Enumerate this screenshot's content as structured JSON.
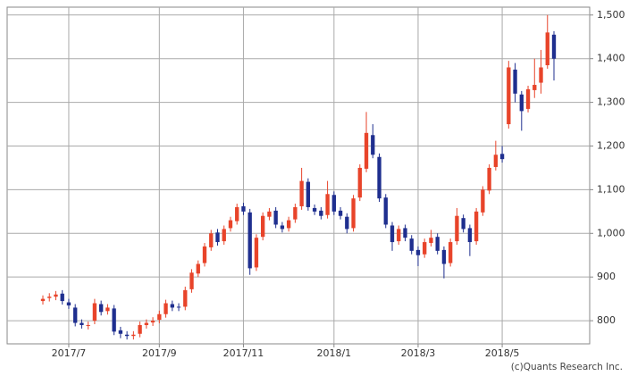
{
  "chart_data": {
    "type": "candlestick",
    "credit": "(c)Quants Research Inc.",
    "up_color": "#e8442a",
    "down_color": "#1f2f8f",
    "grid": true,
    "ylim": [
      747,
      1518
    ],
    "yticks": [
      800,
      900,
      {
        "value": 1000,
        "label": "1,000"
      },
      {
        "value": 1100,
        "label": "1,100"
      },
      {
        "value": 1200,
        "label": "1,200"
      },
      {
        "value": 1300,
        "label": "1,300"
      },
      {
        "value": 1400,
        "label": "1,400"
      },
      {
        "value": 1500,
        "label": "1,500"
      }
    ],
    "categories": [
      null,
      null,
      null,
      null,
      "2017/7",
      null,
      null,
      null,
      null,
      null,
      null,
      null,
      null,
      null,
      null,
      null,
      null,
      null,
      "2017/9",
      null,
      null,
      null,
      null,
      null,
      null,
      null,
      null,
      null,
      null,
      null,
      null,
      "2017/11",
      null,
      null,
      null,
      null,
      null,
      null,
      null,
      null,
      null,
      null,
      null,
      null,
      null,
      "2018/1",
      null,
      null,
      null,
      null,
      null,
      null,
      null,
      null,
      null,
      null,
      null,
      null,
      "2018/3",
      null,
      null,
      null,
      null,
      null,
      null,
      null,
      null,
      null,
      null,
      null,
      null,
      "2018/5",
      null,
      null,
      null,
      null,
      null,
      null,
      null,
      null
    ],
    "open": [
      845,
      852,
      855,
      862,
      842,
      830,
      795,
      788,
      800,
      838,
      822,
      828,
      778,
      768,
      765,
      770,
      790,
      796,
      802,
      815,
      838,
      832,
      832,
      872,
      908,
      932,
      968,
      1002,
      982,
      1012,
      1028,
      1062,
      1048,
      922,
      992,
      1038,
      1052,
      1018,
      1012,
      1032,
      1062,
      1118,
      1058,
      1052,
      1042,
      1088,
      1052,
      1038,
      1012,
      1082,
      1148,
      1225,
      1175,
      1082,
      1018,
      982,
      1012,
      988,
      962,
      952,
      978,
      992,
      962,
      932,
      982,
      1035,
      1012,
      982,
      1048,
      1098,
      1152,
      1182,
      1250,
      1375,
      1318,
      1285,
      1328,
      1345,
      1385,
      1455
    ],
    "high": [
      858,
      863,
      868,
      870,
      850,
      838,
      803,
      798,
      850,
      846,
      838,
      836,
      786,
      776,
      776,
      798,
      803,
      808,
      823,
      848,
      846,
      840,
      878,
      918,
      938,
      978,
      1008,
      1010,
      1018,
      1038,
      1068,
      1070,
      1056,
      998,
      1048,
      1058,
      1060,
      1026,
      1038,
      1068,
      1150,
      1126,
      1066,
      1060,
      1120,
      1096,
      1060,
      1046,
      1088,
      1158,
      1278,
      1250,
      1183,
      1090,
      1026,
      1018,
      1020,
      996,
      970,
      988,
      1008,
      1000,
      970,
      988,
      1058,
      1043,
      1020,
      1058,
      1108,
      1158,
      1212,
      1200,
      1395,
      1390,
      1326,
      1338,
      1400,
      1420,
      1500,
      1463
    ],
    "low": [
      837,
      844,
      847,
      837,
      827,
      787,
      782,
      780,
      792,
      812,
      814,
      767,
      760,
      757,
      757,
      762,
      782,
      788,
      794,
      807,
      822,
      822,
      824,
      864,
      900,
      924,
      960,
      972,
      974,
      1004,
      1020,
      1042,
      905,
      914,
      984,
      1030,
      1012,
      1002,
      1004,
      1024,
      1054,
      1052,
      1042,
      1032,
      1034,
      1042,
      1032,
      1000,
      1004,
      1074,
      1140,
      1172,
      1072,
      1012,
      960,
      974,
      982,
      952,
      925,
      944,
      970,
      952,
      897,
      924,
      974,
      1002,
      948,
      974,
      1040,
      1090,
      1144,
      1162,
      1240,
      1300,
      1235,
      1277,
      1310,
      1320,
      1377,
      1350
    ],
    "close": [
      850,
      855,
      860,
      845,
      835,
      795,
      790,
      790,
      840,
      820,
      830,
      775,
      770,
      765,
      768,
      790,
      795,
      800,
      815,
      840,
      830,
      830,
      870,
      910,
      930,
      970,
      1000,
      980,
      1010,
      1030,
      1060,
      1050,
      920,
      990,
      1040,
      1050,
      1020,
      1010,
      1030,
      1060,
      1120,
      1060,
      1050,
      1040,
      1090,
      1050,
      1040,
      1010,
      1080,
      1150,
      1230,
      1180,
      1080,
      1020,
      980,
      1010,
      990,
      960,
      950,
      980,
      990,
      960,
      930,
      980,
      1040,
      1010,
      980,
      1050,
      1100,
      1150,
      1180,
      1170,
      1380,
      1320,
      1280,
      1330,
      1340,
      1380,
      1460,
      1400
    ]
  }
}
